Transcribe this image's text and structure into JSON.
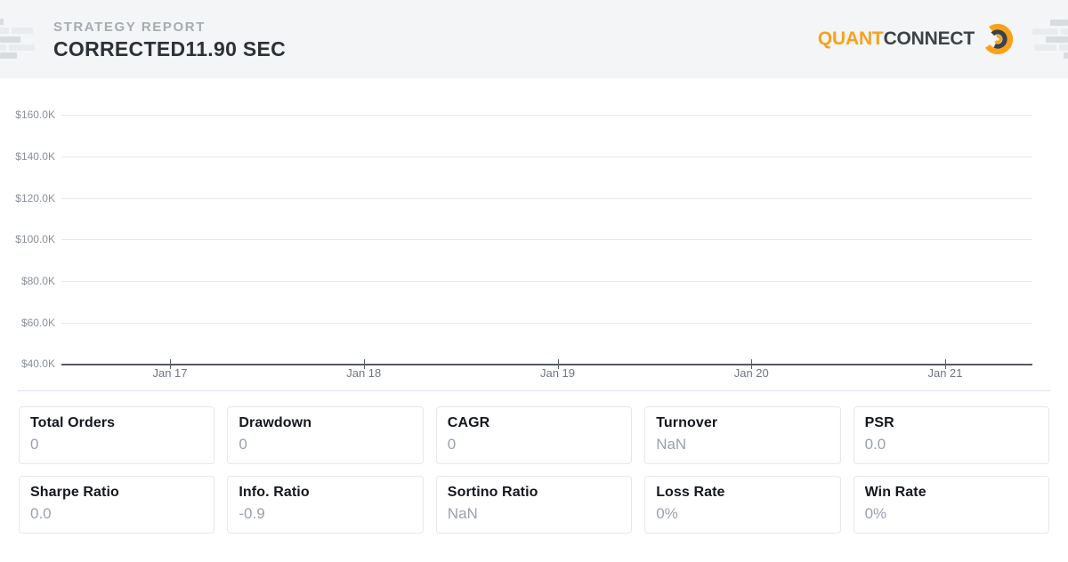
{
  "header": {
    "report_label": "STRATEGY REPORT",
    "report_title": "CORRECTED11.90 SEC",
    "brand_quant": "QUANT",
    "brand_connect": "CONNECT",
    "brand_icon": "quantconnect-ring-icon"
  },
  "colors": {
    "accent_orange": "#F9A11B",
    "brand_dark": "#3D4247",
    "header_bg": "#F4F5F6",
    "grid_line": "#E3E9F0",
    "axis_line": "#555962",
    "y_tick_text": "#8A9099",
    "x_tick_text": "#6F7680",
    "card_border": "#E4E7F0",
    "card_label": "#14171C",
    "card_value": "#9AA1AC"
  },
  "chart_data": {
    "type": "line",
    "title": "",
    "xlabel": "",
    "ylabel": "",
    "x_tick_labels": [
      "Jan 17",
      "Jan 18",
      "Jan 19",
      "Jan 20",
      "Jan 21"
    ],
    "y_tick_labels": [
      "$160.0K",
      "$140.0K",
      "$120.0K",
      "$100.0K",
      "$80.0K",
      "$60.0K",
      "$40.0K"
    ],
    "ylim": [
      40000,
      160000
    ],
    "grid": "horizontal gridlines only, dark baseline at $40.0K",
    "legend": "none",
    "series": []
  },
  "stats": {
    "rows": [
      [
        {
          "label": "Total Orders",
          "value": "0"
        },
        {
          "label": "Drawdown",
          "value": "0"
        },
        {
          "label": "CAGR",
          "value": "0"
        },
        {
          "label": "Turnover",
          "value": "NaN"
        },
        {
          "label": "PSR",
          "value": "0.0"
        }
      ],
      [
        {
          "label": "Sharpe Ratio",
          "value": "0.0"
        },
        {
          "label": "Info. Ratio",
          "value": "-0.9"
        },
        {
          "label": "Sortino Ratio",
          "value": "NaN"
        },
        {
          "label": "Loss Rate",
          "value": "0%"
        },
        {
          "label": "Win Rate",
          "value": "0%"
        }
      ]
    ]
  }
}
